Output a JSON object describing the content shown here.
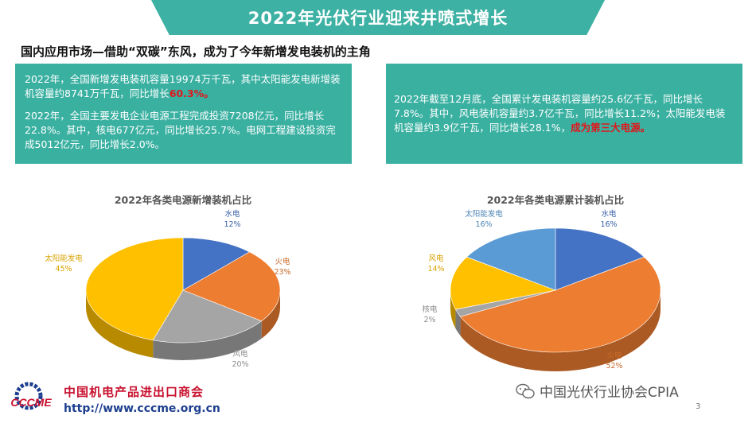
{
  "slide": {
    "title": "2022年光伏行业迎来井喷式增长",
    "subtitle": "国内应用市场—借助“双碳”东风，成为了今年新增发电装机的主角",
    "page_number": "3"
  },
  "box_left": {
    "p1_text": "2022年，全国新增发电装机容量19974万千瓦，其中太阳能发电新增装机容量约8741万千瓦，同比增长",
    "p1_highlight": "60.3%。",
    "p2_text": "2022年，全国主要发电企业电源工程完成投资7208亿元，同比增长22.8%。其中，核电677亿元，同比增长25.7%。电网工程建设投资完成5012亿元，同比增长2.0%。"
  },
  "box_right": {
    "text": "2022年截至12月底，全国累计发电装机容量约25.6亿千瓦，同比增长7.8%。其中，风电装机容量约3.7亿千瓦，同比增长11.2%；太阳能发电装机容量约3.9亿千瓦，同比增长28.1%，",
    "highlight": "成为第三大电源。"
  },
  "chart_data": [
    {
      "type": "pie",
      "title": "2022年各类电源新增装机占比",
      "categories": [
        "水电",
        "火电",
        "风电",
        "太阳能发电"
      ],
      "values": [
        12,
        23,
        20,
        45
      ],
      "value_labels": [
        "12%",
        "23%",
        "20%",
        "45%"
      ],
      "colors": [
        "#4472c4",
        "#ed7d31",
        "#a5a5a5",
        "#ffc000"
      ]
    },
    {
      "type": "pie",
      "title": "2022年各类电源累计装机占比",
      "categories": [
        "水电",
        "火电",
        "核电",
        "风电",
        "太阳能发电"
      ],
      "values": [
        16,
        52,
        2,
        14,
        16
      ],
      "value_labels": [
        "16%",
        "52%",
        "2%",
        "14%",
        "16%"
      ],
      "colors": [
        "#4472c4",
        "#ed7d31",
        "#a5a5a5",
        "#ffc000",
        "#5b9bd5"
      ]
    }
  ],
  "footer": {
    "logo_text": "CCCME",
    "org_name": "中国机电产品进出口商会",
    "url": "http://www.cccme.org.cn",
    "watermark": "中国光伏行业协会CPIA"
  }
}
